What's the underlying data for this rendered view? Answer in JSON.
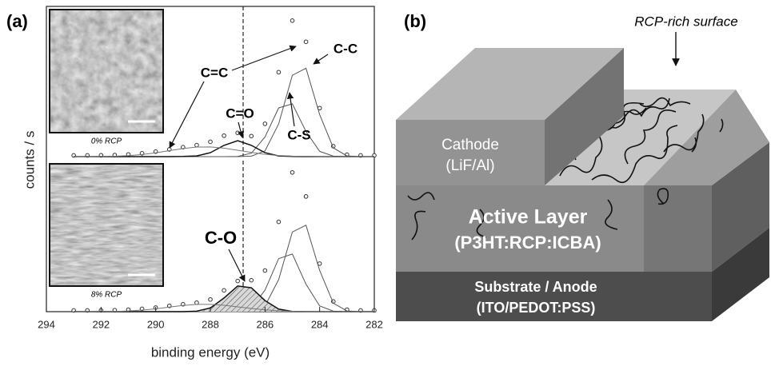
{
  "chart_data": [
    {
      "type": "line",
      "xlim": [
        294,
        282
      ],
      "ylim": [
        0,
        120
      ],
      "ylabel": "counts / s",
      "inset_label": "0% RCP",
      "reference_x": 286.8,
      "x": [
        293,
        292.5,
        292,
        291.5,
        291,
        290.5,
        290,
        289.5,
        289,
        288.5,
        288,
        287.5,
        287,
        286.5,
        286,
        285.5,
        285,
        284.5,
        284,
        283.5,
        283,
        282.5,
        282
      ],
      "series": [
        {
          "marker": "circle",
          "color": "#333333",
          "values": [
            1.0,
            1.0,
            1.1,
            1.3,
            1.8,
            2.7,
            4.1,
            5.9,
            7.7,
            9.4,
            12.1,
            17.1,
            19.4,
            16.8,
            26.8,
            68.9,
            111,
            93.7,
            39.6,
            8.5,
            1.6,
            1.0,
            1.0
          ]
        },
        {
          "name": "C-C",
          "color": "#555555",
          "values": [
            0,
            0,
            0,
            0,
            0,
            0,
            0,
            0,
            0,
            0,
            0,
            0,
            0,
            0.4,
            4.7,
            26.7,
            66.4,
            72.1,
            34.3,
            7.1,
            0.6,
            0,
            0
          ]
        },
        {
          "name": "C-S",
          "color": "#555555",
          "values": [
            0,
            0,
            0,
            0,
            0,
            0,
            0,
            0,
            0,
            0,
            0,
            0,
            0.2,
            2.8,
            16.0,
            39.7,
            43.1,
            20.5,
            4.3,
            0.4,
            0,
            0,
            0
          ]
        },
        {
          "name": "C=O",
          "color": "#111111",
          "values": [
            0,
            0,
            0,
            0,
            0,
            0,
            0,
            0,
            0.1,
            0.6,
            3.2,
            9.2,
            13,
            9.2,
            3.2,
            0.6,
            0.1,
            0,
            0,
            0,
            0,
            0,
            0
          ]
        },
        {
          "name": "C=C",
          "color": "#777777",
          "values": [
            0,
            0,
            0.1,
            0.3,
            0.8,
            1.7,
            3.1,
            4.9,
            6.6,
            7.8,
            7.9,
            6.9,
            5.2,
            3.4,
            1.9,
            0.9,
            0.4,
            0.1,
            0,
            0,
            0,
            0,
            0
          ]
        }
      ]
    },
    {
      "type": "line",
      "xlim": [
        294,
        282
      ],
      "ylim": [
        0,
        120
      ],
      "xlabel": "binding energy (eV)",
      "inset_label": "8% RCP",
      "reference_x": 286.8,
      "xticks": [
        294,
        292,
        290,
        288,
        286,
        284,
        282
      ],
      "x": [
        293,
        292.5,
        292,
        291.5,
        291,
        290.5,
        290,
        289.5,
        289,
        288.5,
        288,
        287.5,
        287,
        286.5,
        286,
        285.5,
        285,
        284.5,
        284,
        283.5,
        283,
        282.5,
        282
      ],
      "series": [
        {
          "marker": "circle",
          "color": "#333333",
          "values": [
            1.0,
            1.0,
            1.1,
            1.2,
            1.6,
            2.3,
            3.3,
            4.7,
            6.0,
            7.3,
            9.9,
            17.3,
            24.9,
            25.5,
            33.4,
            72.9,
            113,
            93.5,
            39.0,
            8.3,
            1.6,
            1.0,
            1.0
          ]
        },
        {
          "color": "#555555",
          "values": [
            0,
            0,
            0,
            0,
            0,
            0,
            0,
            0,
            0,
            0,
            0,
            0,
            0,
            0.4,
            4.6,
            26.0,
            64.7,
            70.2,
            33.4,
            6.9,
            0.6,
            0,
            0
          ]
        },
        {
          "color": "#555555",
          "values": [
            0,
            0,
            0,
            0,
            0,
            0,
            0,
            0,
            0,
            0,
            0,
            0,
            0.2,
            3.1,
            17.4,
            43.1,
            46.8,
            22.3,
            4.6,
            0.4,
            0,
            0,
            0
          ]
        },
        {
          "name": "C-O",
          "color": "#111111",
          "hatch": true,
          "values": [
            0,
            0,
            0,
            0,
            0,
            0,
            0,
            0,
            0,
            0.4,
            3.0,
            11.1,
            20.8,
            19.4,
            9.0,
            2.1,
            0.2,
            0,
            0,
            0,
            0,
            0,
            0
          ]
        },
        {
          "color": "#777777",
          "values": [
            0,
            0,
            0.1,
            0.2,
            0.6,
            1.3,
            2.3,
            3.7,
            5.0,
            5.9,
            5.9,
            5.2,
            3.9,
            2.6,
            1.4,
            0.7,
            0.3,
            0,
            0,
            0,
            0,
            0,
            0
          ]
        }
      ]
    }
  ],
  "panel_labels": [
    "(a)",
    "(b)"
  ],
  "diagram": {
    "surface_label": "RCP-rich surface",
    "cathode": [
      "Cathode",
      "(LiF/Al)"
    ],
    "active_layer": [
      "Active Layer",
      "(P3HT:RCP:ICBA)"
    ],
    "substrate": [
      "Substrate / Anode",
      "(ITO/PEDOT:PSS)"
    ]
  }
}
